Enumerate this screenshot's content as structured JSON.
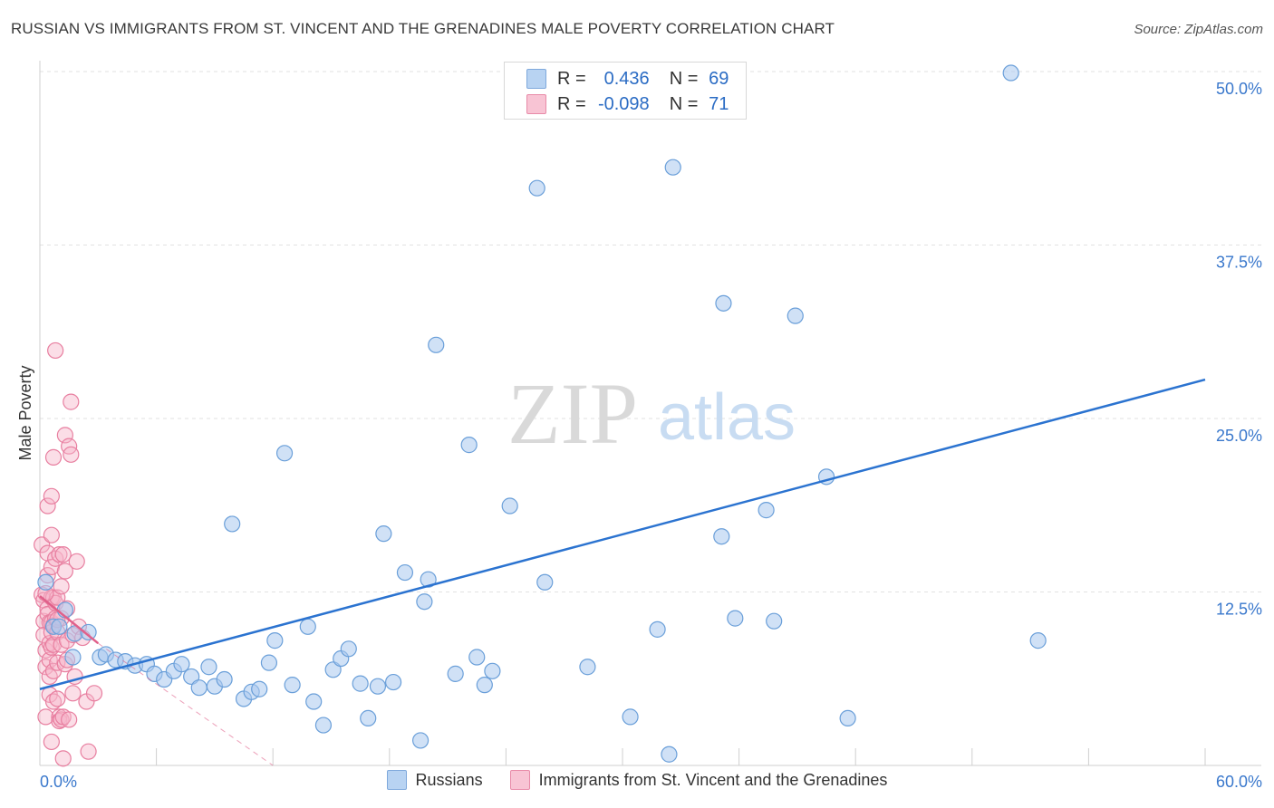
{
  "header": {
    "title": "RUSSIAN VS IMMIGRANTS FROM ST. VINCENT AND THE GRENADINES MALE POVERTY CORRELATION CHART",
    "source": "Source: ZipAtlas.com"
  },
  "stats_legend": {
    "r_label": "R =",
    "n_label": "N =",
    "russians": {
      "r": "0.436",
      "n": "69"
    },
    "immigrants": {
      "r": "-0.098",
      "n": "71"
    }
  },
  "bottom_legend": {
    "russians": "Russians",
    "immigrants": "Immigrants from St. Vincent and the Grenadines"
  },
  "watermark": {
    "zip": "ZIP",
    "atlas": "atlas"
  },
  "colors": {
    "blue_fill": "#a9c8ee",
    "blue_stroke": "#6a9fd9",
    "blue_line": "#2b73d0",
    "pink_fill": "#f6b5c9",
    "pink_stroke": "#e87fa0",
    "pink_line": "#e0608a",
    "grid": "#e2e2e2",
    "tick_label": "#3a78cc"
  },
  "chart_data": {
    "type": "scatter",
    "title": "RUSSIAN VS IMMIGRANTS FROM ST. VINCENT AND THE GRENADINES MALE POVERTY CORRELATION CHART",
    "xlabel": "",
    "ylabel": "Male Poverty",
    "xlim": [
      0,
      60
    ],
    "ylim": [
      0,
      50
    ],
    "x_tick_labels": [
      "0.0%",
      "60.0%"
    ],
    "y_ticks": [
      12.5,
      25.0,
      37.5,
      50.0
    ],
    "y_tick_labels": [
      "12.5%",
      "25.0%",
      "37.5%",
      "50.0%"
    ],
    "grid": true,
    "series": [
      {
        "name": "Russians",
        "trend": {
          "x0": 0,
          "y0": 5.5,
          "x1": 60,
          "y1": 27.8
        },
        "points": [
          [
            0.3,
            13.2
          ],
          [
            0.7,
            10.0
          ],
          [
            1.0,
            10.0
          ],
          [
            1.3,
            11.2
          ],
          [
            1.7,
            7.8
          ],
          [
            1.8,
            9.5
          ],
          [
            3.1,
            7.8
          ],
          [
            3.4,
            8.0
          ],
          [
            3.9,
            7.6
          ],
          [
            4.4,
            7.5
          ],
          [
            4.9,
            7.2
          ],
          [
            5.5,
            7.3
          ],
          [
            5.9,
            6.6
          ],
          [
            6.4,
            6.2
          ],
          [
            6.9,
            6.8
          ],
          [
            7.3,
            7.3
          ],
          [
            7.8,
            6.4
          ],
          [
            8.2,
            5.6
          ],
          [
            8.7,
            7.1
          ],
          [
            9.0,
            5.7
          ],
          [
            9.5,
            6.2
          ],
          [
            9.9,
            17.4
          ],
          [
            10.5,
            4.8
          ],
          [
            10.9,
            5.3
          ],
          [
            11.3,
            5.5
          ],
          [
            11.8,
            7.4
          ],
          [
            12.1,
            9.0
          ],
          [
            12.6,
            22.5
          ],
          [
            13.0,
            5.8
          ],
          [
            13.8,
            10.0
          ],
          [
            14.1,
            4.6
          ],
          [
            14.6,
            2.9
          ],
          [
            15.1,
            6.9
          ],
          [
            15.5,
            7.7
          ],
          [
            15.9,
            8.4
          ],
          [
            16.5,
            5.9
          ],
          [
            16.9,
            3.4
          ],
          [
            17.4,
            5.7
          ],
          [
            17.7,
            16.7
          ],
          [
            18.2,
            6.0
          ],
          [
            18.8,
            13.9
          ],
          [
            19.6,
            1.8
          ],
          [
            19.8,
            11.8
          ],
          [
            20.0,
            13.4
          ],
          [
            20.4,
            30.3
          ],
          [
            21.4,
            6.6
          ],
          [
            22.1,
            23.1
          ],
          [
            22.5,
            7.8
          ],
          [
            22.9,
            5.8
          ],
          [
            23.3,
            6.8
          ],
          [
            24.2,
            18.7
          ],
          [
            25.6,
            41.6
          ],
          [
            26.0,
            13.2
          ],
          [
            28.2,
            7.1
          ],
          [
            30.4,
            3.5
          ],
          [
            31.8,
            9.8
          ],
          [
            32.4,
            0.8
          ],
          [
            32.6,
            43.1
          ],
          [
            35.1,
            16.5
          ],
          [
            35.2,
            33.3
          ],
          [
            35.8,
            10.6
          ],
          [
            37.4,
            18.4
          ],
          [
            37.8,
            10.4
          ],
          [
            38.9,
            32.4
          ],
          [
            40.5,
            20.8
          ],
          [
            41.6,
            3.4
          ],
          [
            50.0,
            49.9
          ],
          [
            51.4,
            9.0
          ],
          [
            2.5,
            9.6
          ]
        ]
      },
      {
        "name": "Immigrants from St. Vincent and the Grenadines",
        "trend": {
          "x0": 0,
          "y0": 12.2,
          "x1": 3.0,
          "y1": 8.8
        },
        "trend_extension": {
          "x0": 3.0,
          "y0": 8.8,
          "x1": 12.0,
          "y1": 0.0
        },
        "points": [
          [
            0.1,
            15.9
          ],
          [
            0.1,
            12.3
          ],
          [
            0.2,
            11.9
          ],
          [
            0.2,
            10.4
          ],
          [
            0.2,
            9.4
          ],
          [
            0.3,
            8.3
          ],
          [
            0.3,
            7.1
          ],
          [
            0.3,
            3.5
          ],
          [
            0.4,
            18.7
          ],
          [
            0.4,
            15.3
          ],
          [
            0.4,
            13.7
          ],
          [
            0.4,
            11.3
          ],
          [
            0.4,
            10.9
          ],
          [
            0.5,
            10.3
          ],
          [
            0.5,
            8.8
          ],
          [
            0.5,
            7.6
          ],
          [
            0.5,
            6.4
          ],
          [
            0.5,
            5.1
          ],
          [
            0.6,
            19.4
          ],
          [
            0.6,
            16.6
          ],
          [
            0.6,
            14.3
          ],
          [
            0.6,
            12.1
          ],
          [
            0.6,
            10.3
          ],
          [
            0.6,
            9.6
          ],
          [
            0.6,
            8.5
          ],
          [
            0.6,
            1.7
          ],
          [
            0.7,
            22.2
          ],
          [
            0.7,
            12.1
          ],
          [
            0.7,
            10.1
          ],
          [
            0.7,
            8.7
          ],
          [
            0.7,
            6.8
          ],
          [
            0.7,
            4.6
          ],
          [
            0.8,
            29.9
          ],
          [
            0.8,
            14.9
          ],
          [
            0.8,
            11.7
          ],
          [
            0.8,
            10.6
          ],
          [
            0.9,
            12.1
          ],
          [
            0.9,
            9.6
          ],
          [
            0.9,
            7.4
          ],
          [
            0.9,
            4.8
          ],
          [
            1.0,
            3.5
          ],
          [
            1.0,
            3.2
          ],
          [
            1.0,
            15.2
          ],
          [
            1.1,
            12.9
          ],
          [
            1.1,
            10.6
          ],
          [
            1.1,
            8.7
          ],
          [
            1.1,
            3.3
          ],
          [
            1.2,
            15.2
          ],
          [
            1.2,
            0.5
          ],
          [
            1.2,
            3.5
          ],
          [
            1.3,
            23.8
          ],
          [
            1.3,
            14.0
          ],
          [
            1.3,
            7.3
          ],
          [
            1.4,
            11.3
          ],
          [
            1.4,
            9.0
          ],
          [
            1.4,
            7.6
          ],
          [
            1.5,
            23.0
          ],
          [
            1.5,
            3.3
          ],
          [
            1.6,
            22.4
          ],
          [
            1.6,
            26.2
          ],
          [
            1.7,
            5.2
          ],
          [
            1.7,
            9.4
          ],
          [
            1.8,
            6.4
          ],
          [
            1.9,
            14.7
          ],
          [
            2.0,
            10.0
          ],
          [
            2.2,
            9.2
          ],
          [
            2.4,
            4.6
          ],
          [
            2.5,
            1.0
          ],
          [
            2.8,
            5.2
          ],
          [
            0.3,
            12.4
          ],
          [
            0.9,
            10.5
          ]
        ]
      }
    ]
  }
}
